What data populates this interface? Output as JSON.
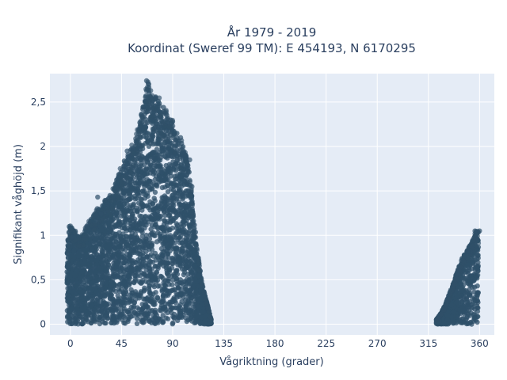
{
  "chart_data": {
    "type": "scatter",
    "title_lines": [
      "År 1979 - 2019",
      "Koordinat (Sweref 99 TM): E 454193, N 6170295"
    ],
    "xlabel": "Vågriktning (grader)",
    "ylabel": "Signifikant våghöjd (m)",
    "xlim": [
      -18,
      373
    ],
    "ylim": [
      -0.12,
      2.82
    ],
    "xticks": [
      0,
      45,
      90,
      135,
      180,
      225,
      270,
      315,
      360
    ],
    "xtick_labels": [
      "0",
      "45",
      "90",
      "135",
      "180",
      "225",
      "270",
      "315",
      "360"
    ],
    "yticks": [
      0,
      0.5,
      1,
      1.5,
      2,
      2.5
    ],
    "ytick_labels": [
      "0",
      "0,5",
      "1",
      "1,5",
      "2",
      "2,5"
    ],
    "grid": true,
    "legend": "none",
    "colors": {
      "marker": "#2f5069",
      "plot_bg": "#e5ecf6",
      "grid": "#ffffff",
      "text": "#2a3f5f"
    },
    "series": [
      {
        "envelope": [
          [
            -3,
            0.93
          ],
          [
            0,
            1.1
          ],
          [
            5,
            1.02
          ],
          [
            10,
            1.0
          ],
          [
            15,
            1.12
          ],
          [
            20,
            1.22
          ],
          [
            25,
            1.3
          ],
          [
            30,
            1.38
          ],
          [
            35,
            1.45
          ],
          [
            40,
            1.6
          ],
          [
            45,
            1.78
          ],
          [
            50,
            1.9
          ],
          [
            55,
            2.0
          ],
          [
            60,
            2.2
          ],
          [
            63,
            2.4
          ],
          [
            66,
            2.55
          ],
          [
            68,
            2.75
          ],
          [
            70,
            2.62
          ],
          [
            75,
            2.55
          ],
          [
            80,
            2.48
          ],
          [
            85,
            2.38
          ],
          [
            90,
            2.28
          ],
          [
            95,
            2.12
          ],
          [
            100,
            1.98
          ],
          [
            103,
            1.85
          ],
          [
            106,
            1.55
          ],
          [
            108,
            1.3
          ],
          [
            110,
            1.05
          ],
          [
            112,
            0.8
          ],
          [
            115,
            0.55
          ],
          [
            118,
            0.35
          ],
          [
            122,
            0.15
          ],
          [
            124,
            0.05
          ]
        ],
        "envelope2": [
          [
            322,
            0.05
          ],
          [
            326,
            0.12
          ],
          [
            330,
            0.22
          ],
          [
            334,
            0.36
          ],
          [
            338,
            0.5
          ],
          [
            342,
            0.65
          ],
          [
            346,
            0.78
          ],
          [
            350,
            0.85
          ],
          [
            354,
            0.95
          ],
          [
            357,
            1.05
          ],
          [
            359,
            1.04
          ]
        ],
        "outliers": [
          [
            -1,
            1.1
          ],
          [
            2,
            0.98
          ],
          [
            24,
            1.43
          ],
          [
            27,
            1.24
          ],
          [
            33,
            1.35
          ],
          [
            38,
            1.44
          ],
          [
            40,
            1.54
          ],
          [
            47,
            1.78
          ],
          [
            50,
            1.95
          ],
          [
            55,
            1.98
          ],
          [
            62,
            2.21
          ],
          [
            67,
            2.74
          ],
          [
            69,
            2.7
          ],
          [
            75,
            2.55
          ],
          [
            97,
            2.1
          ],
          [
            105,
            1.85
          ],
          [
            107,
            1.55
          ],
          [
            356,
            1.05
          ],
          [
            360,
            1.05
          ]
        ],
        "values": [
          [
            60,
            0.0
          ]
        ]
      }
    ]
  }
}
